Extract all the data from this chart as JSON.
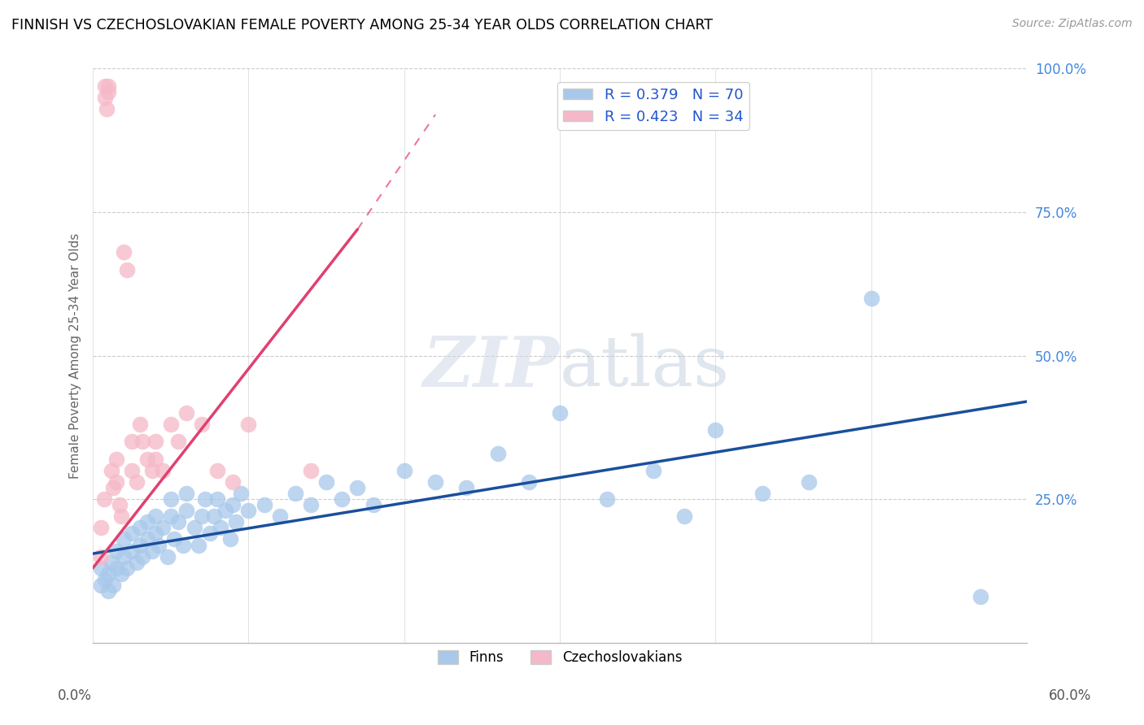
{
  "title": "FINNISH VS CZECHOSLOVAKIAN FEMALE POVERTY AMONG 25-34 YEAR OLDS CORRELATION CHART",
  "source": "Source: ZipAtlas.com",
  "ylabel": "Female Poverty Among 25-34 Year Olds",
  "xmin": 0.0,
  "xmax": 0.6,
  "ymin": 0.0,
  "ymax": 1.0,
  "finn_R": 0.379,
  "finn_N": 70,
  "czech_R": 0.423,
  "czech_N": 34,
  "finn_color": "#a8c8ea",
  "finn_line_color": "#1a4f9c",
  "czech_color": "#f5b8c8",
  "czech_line_color": "#e04070",
  "watermark": "ZIPatlas",
  "legend_bottom_finn": "Finns",
  "legend_bottom_czech": "Czechoslovakians",
  "finns_x": [
    0.005,
    0.005,
    0.008,
    0.01,
    0.01,
    0.012,
    0.013,
    0.015,
    0.015,
    0.018,
    0.02,
    0.02,
    0.022,
    0.025,
    0.025,
    0.028,
    0.03,
    0.03,
    0.032,
    0.035,
    0.035,
    0.038,
    0.04,
    0.04,
    0.042,
    0.045,
    0.048,
    0.05,
    0.05,
    0.052,
    0.055,
    0.058,
    0.06,
    0.06,
    0.065,
    0.068,
    0.07,
    0.072,
    0.075,
    0.078,
    0.08,
    0.082,
    0.085,
    0.088,
    0.09,
    0.092,
    0.095,
    0.1,
    0.11,
    0.12,
    0.13,
    0.14,
    0.15,
    0.16,
    0.17,
    0.18,
    0.2,
    0.22,
    0.24,
    0.26,
    0.28,
    0.3,
    0.33,
    0.36,
    0.38,
    0.4,
    0.43,
    0.46,
    0.5,
    0.57
  ],
  "finns_y": [
    0.1,
    0.13,
    0.11,
    0.09,
    0.12,
    0.14,
    0.1,
    0.13,
    0.16,
    0.12,
    0.15,
    0.18,
    0.13,
    0.16,
    0.19,
    0.14,
    0.17,
    0.2,
    0.15,
    0.18,
    0.21,
    0.16,
    0.19,
    0.22,
    0.17,
    0.2,
    0.15,
    0.22,
    0.25,
    0.18,
    0.21,
    0.17,
    0.23,
    0.26,
    0.2,
    0.17,
    0.22,
    0.25,
    0.19,
    0.22,
    0.25,
    0.2,
    0.23,
    0.18,
    0.24,
    0.21,
    0.26,
    0.23,
    0.24,
    0.22,
    0.26,
    0.24,
    0.28,
    0.25,
    0.27,
    0.24,
    0.3,
    0.28,
    0.27,
    0.33,
    0.28,
    0.4,
    0.25,
    0.3,
    0.22,
    0.37,
    0.26,
    0.28,
    0.6,
    0.08
  ],
  "czechs_x": [
    0.005,
    0.005,
    0.007,
    0.008,
    0.008,
    0.009,
    0.01,
    0.01,
    0.012,
    0.013,
    0.015,
    0.015,
    0.017,
    0.018,
    0.02,
    0.022,
    0.025,
    0.025,
    0.028,
    0.03,
    0.032,
    0.035,
    0.038,
    0.04,
    0.04,
    0.045,
    0.05,
    0.055,
    0.06,
    0.07,
    0.08,
    0.09,
    0.1,
    0.14
  ],
  "czechs_y": [
    0.15,
    0.2,
    0.25,
    0.97,
    0.95,
    0.93,
    0.97,
    0.96,
    0.3,
    0.27,
    0.32,
    0.28,
    0.24,
    0.22,
    0.68,
    0.65,
    0.35,
    0.3,
    0.28,
    0.38,
    0.35,
    0.32,
    0.3,
    0.35,
    0.32,
    0.3,
    0.38,
    0.35,
    0.4,
    0.38,
    0.3,
    0.28,
    0.38,
    0.3
  ],
  "czech_trend_x0": 0.0,
  "czech_trend_y0": 0.13,
  "czech_trend_x1": 0.17,
  "czech_trend_y1": 0.72,
  "finn_trend_x0": 0.0,
  "finn_trend_y0": 0.155,
  "finn_trend_x1": 0.6,
  "finn_trend_y1": 0.42
}
